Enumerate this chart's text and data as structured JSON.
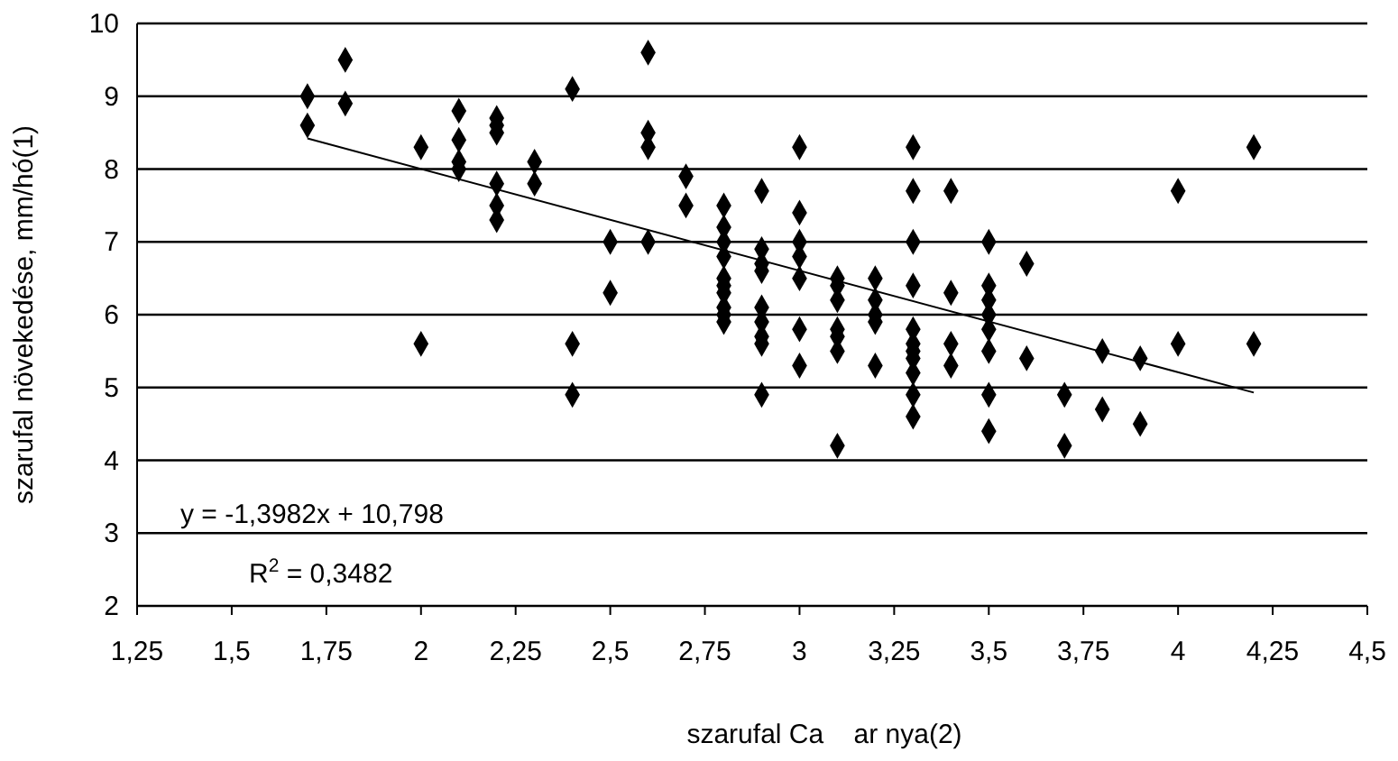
{
  "chart_data": {
    "type": "scatter",
    "xlabel": "szarufal Ca    ar nya(2)",
    "ylabel": "szarufal növekedése, mm/hó(1)",
    "xlim": [
      1.25,
      4.5
    ],
    "ylim": [
      2,
      10
    ],
    "xticks": [
      {
        "value": 1.25,
        "label": "1,25"
      },
      {
        "value": 1.5,
        "label": "1,5"
      },
      {
        "value": 1.75,
        "label": "1,75"
      },
      2,
      {
        "value": 2.25,
        "label": "2,25"
      },
      {
        "value": 2.5,
        "label": "2,5"
      },
      {
        "value": 2.75,
        "label": "2,75"
      },
      3,
      {
        "value": 3.25,
        "label": "3,25"
      },
      {
        "value": 3.5,
        "label": "3,5"
      },
      {
        "value": 3.75,
        "label": "3,75"
      },
      4,
      {
        "value": 4.25,
        "label": "4,25"
      },
      {
        "value": 4.5,
        "label": "4,5"
      }
    ],
    "yticks": [
      2,
      3,
      4,
      5,
      6,
      7,
      8,
      9,
      10
    ],
    "grid": "y",
    "series": [
      {
        "color": "#000000",
        "marker": "diamond",
        "x": [
          1.7,
          1.7,
          1.8,
          1.8,
          2.0,
          2.0,
          2.1,
          2.1,
          2.1,
          2.1,
          2.2,
          2.2,
          2.2,
          2.2,
          2.2,
          2.2,
          2.3,
          2.3,
          2.4,
          2.4,
          2.4,
          2.5,
          2.5,
          2.6,
          2.6,
          2.6,
          2.6,
          2.7,
          2.7,
          2.8,
          2.8,
          2.8,
          2.8,
          2.8,
          2.8,
          2.8,
          2.8,
          2.8,
          2.8,
          2.9,
          2.9,
          2.9,
          2.9,
          2.9,
          2.9,
          2.9,
          2.9,
          2.9,
          3.0,
          3.0,
          3.0,
          3.0,
          3.0,
          3.0,
          3.0,
          3.1,
          3.1,
          3.1,
          3.1,
          3.1,
          3.1,
          3.1,
          3.2,
          3.2,
          3.2,
          3.2,
          3.2,
          3.3,
          3.3,
          3.3,
          3.3,
          3.3,
          3.3,
          3.3,
          3.3,
          3.3,
          3.3,
          3.3,
          3.4,
          3.4,
          3.4,
          3.4,
          3.5,
          3.5,
          3.5,
          3.5,
          3.5,
          3.5,
          3.5,
          3.5,
          3.6,
          3.6,
          3.7,
          3.7,
          3.8,
          3.8,
          3.9,
          3.9,
          4.0,
          4.0,
          4.2,
          4.2
        ],
        "values": [
          9.0,
          8.6,
          9.5,
          8.9,
          8.3,
          5.6,
          8.8,
          8.4,
          8.1,
          8.0,
          8.7,
          8.6,
          8.5,
          7.8,
          7.5,
          7.3,
          8.1,
          7.8,
          9.1,
          5.6,
          4.9,
          7.0,
          6.3,
          9.6,
          8.5,
          8.3,
          7.0,
          7.9,
          7.5,
          7.5,
          7.2,
          7.0,
          6.8,
          6.5,
          6.4,
          6.3,
          6.1,
          6.0,
          5.9,
          7.7,
          6.9,
          6.7,
          6.6,
          6.1,
          5.9,
          5.7,
          5.6,
          4.9,
          8.3,
          7.4,
          7.0,
          6.8,
          6.5,
          5.8,
          5.3,
          6.5,
          6.4,
          6.2,
          5.8,
          5.7,
          5.5,
          4.2,
          6.5,
          6.2,
          6.0,
          5.9,
          5.3,
          8.3,
          7.7,
          7.0,
          6.4,
          5.8,
          5.6,
          5.5,
          5.4,
          5.2,
          4.9,
          4.6,
          7.7,
          6.3,
          5.6,
          5.3,
          7.0,
          6.4,
          6.2,
          6.0,
          5.8,
          5.5,
          4.9,
          4.4,
          6.7,
          5.4,
          4.9,
          4.2,
          5.5,
          4.7,
          5.4,
          4.5,
          7.7,
          5.6,
          8.3,
          5.6
        ]
      },
      {
        "type": "line",
        "color": "#000000",
        "marker": "none",
        "x": [
          1.7,
          4.2
        ],
        "values": [
          8.42,
          4.93
        ]
      }
    ],
    "annotations": [
      "y = -1,3982x + 10,798",
      "R$^{2}$ = 0,3482"
    ]
  }
}
